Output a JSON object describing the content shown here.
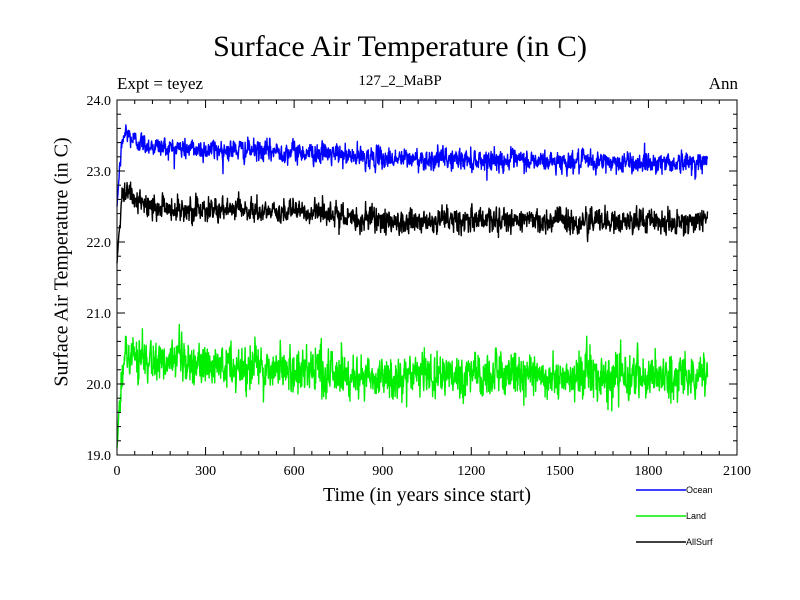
{
  "chart_data": {
    "type": "line",
    "title": "Surface Air Temperature (in C)",
    "subtitle": "127_2_MaBP",
    "expt_label": "Expt = teyez",
    "season_label": "Ann",
    "xlabel": "Time (in years since start)",
    "ylabel": "Surface Air Temperature (in C)",
    "xlim": [
      0,
      2100
    ],
    "ylim": [
      19.0,
      24.0
    ],
    "x_ticks": [
      0,
      300,
      600,
      900,
      1200,
      1500,
      1800,
      2100
    ],
    "x_tick_labels": [
      "0",
      "300",
      "600",
      "900",
      "1200",
      "1500",
      "1800",
      "2100"
    ],
    "y_ticks": [
      19.0,
      20.0,
      21.0,
      22.0,
      23.0,
      24.0
    ],
    "y_tick_labels": [
      "19.0",
      "20.0",
      "21.0",
      "22.0",
      "23.0",
      "24.0"
    ],
    "series": [
      {
        "name": "Ocean",
        "color": "#0000ff",
        "x": [
          0,
          10,
          20,
          30,
          50,
          80,
          120,
          200,
          300,
          400,
          500,
          600,
          700,
          800,
          900,
          1000,
          1100,
          1200,
          1300,
          1400,
          1500,
          1600,
          1700,
          1800,
          1900,
          2000
        ],
        "values": [
          22.5,
          23.1,
          23.45,
          23.55,
          23.45,
          23.4,
          23.35,
          23.32,
          23.3,
          23.3,
          23.28,
          23.27,
          23.25,
          23.2,
          23.18,
          23.17,
          23.17,
          23.16,
          23.15,
          23.14,
          23.13,
          23.13,
          23.12,
          23.12,
          23.12,
          23.12
        ],
        "noise": 0.07
      },
      {
        "name": "Land",
        "color": "#00ee00",
        "x": [
          0,
          10,
          20,
          30,
          50,
          80,
          120,
          200,
          300,
          400,
          500,
          600,
          700,
          800,
          900,
          1000,
          1100,
          1200,
          1300,
          1400,
          1500,
          1600,
          1700,
          1800,
          1900,
          2000
        ],
        "values": [
          19.1,
          19.8,
          20.35,
          20.45,
          20.4,
          20.35,
          20.3,
          20.28,
          20.26,
          20.25,
          20.23,
          20.2,
          20.18,
          20.12,
          20.1,
          20.1,
          20.11,
          20.12,
          20.12,
          20.11,
          20.11,
          20.1,
          20.1,
          20.1,
          20.1,
          20.12
        ],
        "noise": 0.15
      },
      {
        "name": "AllSurf",
        "color": "#000000",
        "x": [
          0,
          10,
          20,
          30,
          50,
          80,
          120,
          200,
          300,
          400,
          500,
          600,
          700,
          800,
          900,
          1000,
          1100,
          1200,
          1300,
          1400,
          1500,
          1600,
          1700,
          1800,
          1900,
          2000
        ],
        "values": [
          21.7,
          22.3,
          22.65,
          22.7,
          22.6,
          22.55,
          22.5,
          22.47,
          22.45,
          22.45,
          22.43,
          22.42,
          22.4,
          22.33,
          22.31,
          22.3,
          22.3,
          22.3,
          22.3,
          22.29,
          22.29,
          22.29,
          22.28,
          22.28,
          22.28,
          22.3
        ],
        "noise": 0.08
      }
    ],
    "legend_position": "bottom-right",
    "grid": false
  }
}
